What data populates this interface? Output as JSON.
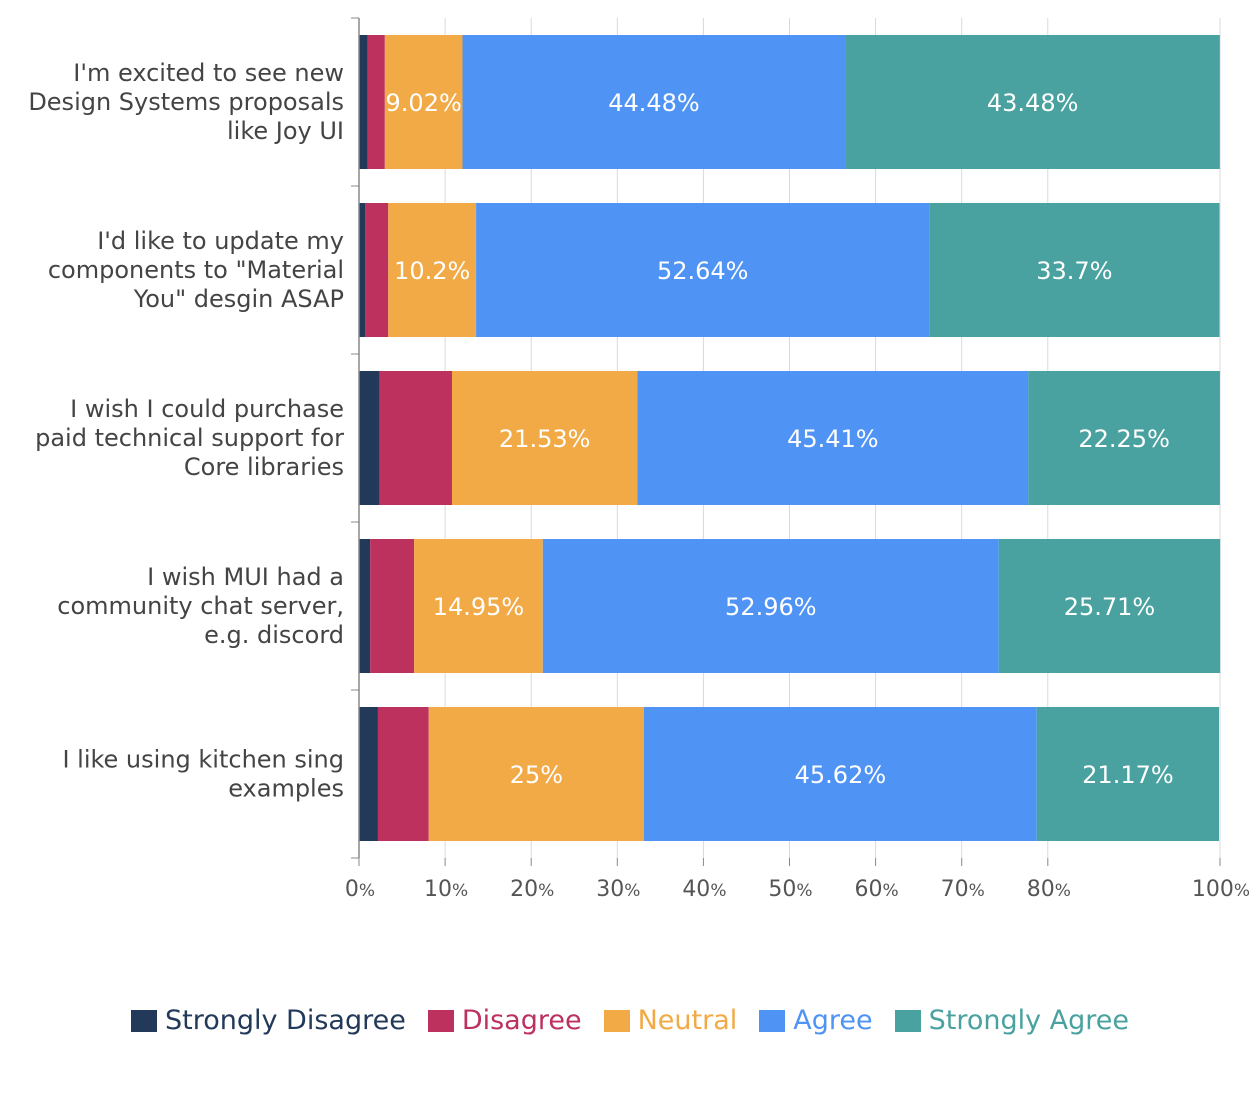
{
  "chart_data": {
    "type": "bar",
    "orientation": "horizontal",
    "stacked": true,
    "categories": [
      "I'm excited to see new Design Systems proposals like Joy UI",
      "I'd like to update my components to \"Material You\" desgin ASAP",
      "I wish I could purchase paid technical support for Core libraries",
      "I wish MUI had a community chat server, e.g. discord",
      "I like using kitchen sing examples"
    ],
    "category_lines": [
      [
        "I'm excited to see new",
        "Design Systems proposals",
        "like Joy UI"
      ],
      [
        "I'd like to update my",
        "components to \"Material",
        "You\" desgin ASAP"
      ],
      [
        "I wish I could purchase",
        "paid technical support for",
        "Core libraries"
      ],
      [
        "I wish MUI had a",
        "community chat server,",
        "e.g. discord"
      ],
      [
        "I like using kitchen sing",
        "examples"
      ]
    ],
    "series": [
      {
        "name": "Strongly Disagree",
        "color": "#22395a",
        "values": [
          1.0,
          0.7,
          2.4,
          1.3,
          2.2
        ],
        "labels": [
          "",
          "",
          "",
          "",
          ""
        ]
      },
      {
        "name": "Disagree",
        "color": "#bc315e",
        "values": [
          2.0,
          2.7,
          8.4,
          5.1,
          5.9
        ],
        "labels": [
          "",
          "",
          "",
          "",
          ""
        ]
      },
      {
        "name": "Neutral",
        "color": "#f2aa47",
        "values": [
          9.02,
          10.2,
          21.53,
          14.95,
          25
        ],
        "labels": [
          "9.02%",
          "10.2%",
          "21.53%",
          "14.95%",
          "25%"
        ]
      },
      {
        "name": "Agree",
        "color": "#4f94f5",
        "values": [
          44.48,
          52.64,
          45.41,
          52.96,
          45.62
        ],
        "labels": [
          "44.48%",
          "52.64%",
          "45.41%",
          "52.96%",
          "45.62%"
        ]
      },
      {
        "name": "Strongly Agree",
        "color": "#49a29f",
        "values": [
          43.48,
          33.7,
          22.25,
          25.71,
          21.17
        ],
        "labels": [
          "43.48%",
          "33.7%",
          "22.25%",
          "25.71%",
          "21.17%"
        ]
      }
    ],
    "xlim": [
      0,
      100
    ],
    "x_ticks": [
      {
        "value": 0,
        "num": "0",
        "unit": "%"
      },
      {
        "value": 10,
        "num": "10",
        "unit": "%"
      },
      {
        "value": 20,
        "num": "20",
        "unit": "%"
      },
      {
        "value": 30,
        "num": "30",
        "unit": "%"
      },
      {
        "value": 40,
        "num": "40",
        "unit": "%"
      },
      {
        "value": 50,
        "num": "50",
        "unit": "%"
      },
      {
        "value": 60,
        "num": "60",
        "unit": "%"
      },
      {
        "value": 70,
        "num": "70",
        "unit": "%"
      },
      {
        "value": 80,
        "num": "80",
        "unit": "%"
      },
      {
        "value": 100,
        "num": "100",
        "unit": "%"
      }
    ],
    "grid": true,
    "legend_position": "bottom"
  }
}
